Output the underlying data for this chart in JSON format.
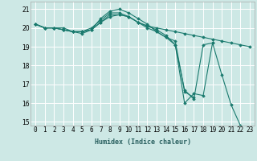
{
  "xlabel": "Humidex (Indice chaleur)",
  "x": [
    0,
    1,
    2,
    3,
    4,
    5,
    6,
    7,
    8,
    9,
    10,
    11,
    12,
    13,
    14,
    15,
    16,
    17,
    18,
    19,
    20,
    21,
    22,
    23
  ],
  "series": [
    [
      20.2,
      20.0,
      20.0,
      20.0,
      19.8,
      19.8,
      19.9,
      20.3,
      20.7,
      20.7,
      20.6,
      20.3,
      20.1,
      20.0,
      19.9,
      19.8,
      19.7,
      19.6,
      19.5,
      19.4,
      19.3,
      19.2,
      19.1,
      19.0
    ],
    [
      20.2,
      20.0,
      20.0,
      19.9,
      19.8,
      19.7,
      19.9,
      20.5,
      20.9,
      21.0,
      20.8,
      20.5,
      20.2,
      19.8,
      19.5,
      19.1,
      16.0,
      16.5,
      16.4,
      19.2,
      17.5,
      15.9,
      14.8,
      null
    ],
    [
      20.2,
      20.0,
      20.0,
      19.9,
      19.8,
      19.8,
      19.9,
      20.3,
      20.6,
      20.7,
      20.6,
      20.3,
      20.0,
      19.8,
      19.5,
      19.3,
      16.6,
      16.3,
      null,
      null,
      null,
      null,
      null,
      null
    ],
    [
      20.2,
      20.0,
      20.0,
      19.9,
      19.8,
      19.8,
      20.0,
      20.4,
      20.8,
      20.8,
      20.6,
      20.3,
      20.1,
      19.9,
      19.6,
      19.1,
      16.7,
      16.2,
      19.1,
      19.2,
      null,
      null,
      null,
      null
    ]
  ],
  "line_color": "#1a7a6e",
  "bg_color": "#cde8e5",
  "grid_color": "#ffffff",
  "ylim": [
    14.8,
    21.4
  ],
  "yticks": [
    15,
    16,
    17,
    18,
    19,
    20,
    21
  ],
  "xticks": [
    0,
    1,
    2,
    3,
    4,
    5,
    6,
    7,
    8,
    9,
    10,
    11,
    12,
    13,
    14,
    15,
    16,
    17,
    18,
    19,
    20,
    21,
    22,
    23
  ],
  "xlabel_fontsize": 6.0,
  "tick_fontsize": 5.5
}
